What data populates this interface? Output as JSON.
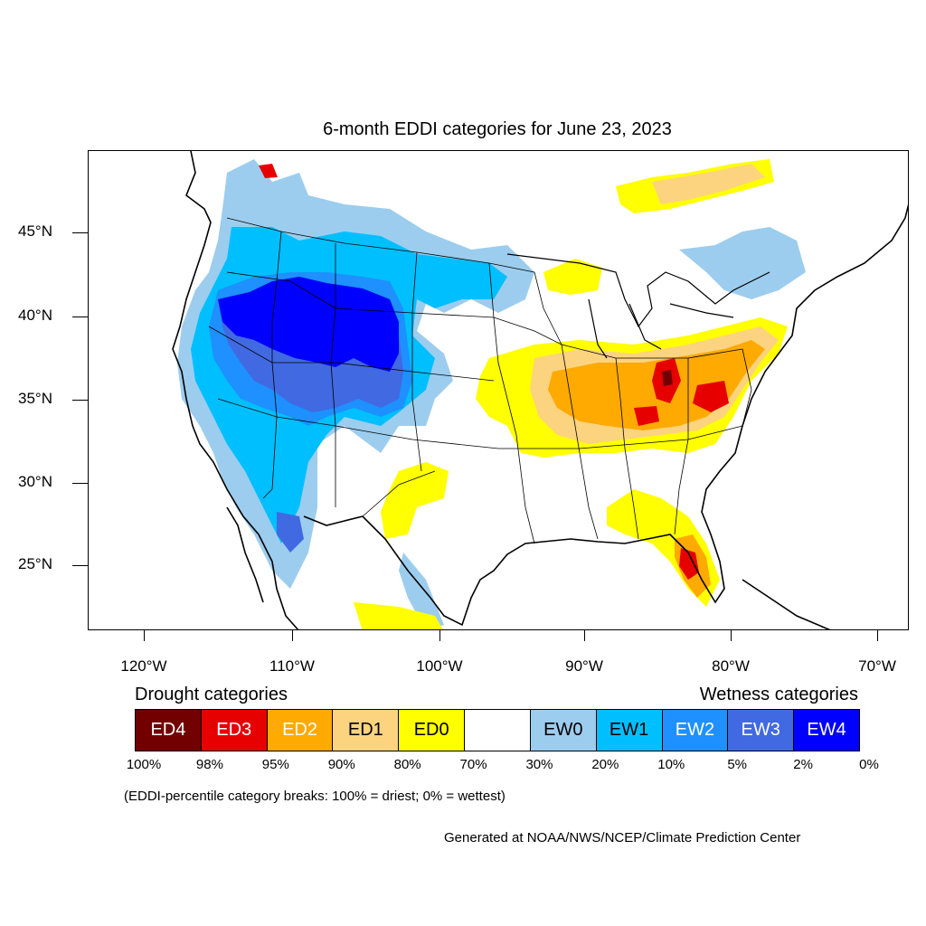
{
  "title": "6-month EDDI categories for June 23, 2023",
  "lat_labels": [
    "45°N",
    "40°N",
    "35°N",
    "30°N",
    "25°N"
  ],
  "lon_labels": [
    "120°W",
    "110°W",
    "100°W",
    "90°W",
    "80°W",
    "70°W"
  ],
  "legend": {
    "drought_heading": "Drought categories",
    "wetness_heading": "Wetness categories",
    "categories": [
      {
        "label": "ED4",
        "color": "#730000",
        "text_color": "#ffffff"
      },
      {
        "label": "ED3",
        "color": "#e60000",
        "text_color": "#ffffff"
      },
      {
        "label": "ED2",
        "color": "#ffaa00",
        "text_color": "#ffffff"
      },
      {
        "label": "ED1",
        "color": "#fcd37f",
        "text_color": "#000000"
      },
      {
        "label": "ED0",
        "color": "#ffff00",
        "text_color": "#000000"
      },
      {
        "label": "",
        "color": "#ffffff",
        "text_color": "#000000"
      },
      {
        "label": "EW0",
        "color": "#9ccdee",
        "text_color": "#000000"
      },
      {
        "label": "EW1",
        "color": "#00bfff",
        "text_color": "#000000"
      },
      {
        "label": "EW2",
        "color": "#1e90ff",
        "text_color": "#ffffff"
      },
      {
        "label": "EW3",
        "color": "#4169e1",
        "text_color": "#ffffff"
      },
      {
        "label": "EW4",
        "color": "#0000ff",
        "text_color": "#ffffff"
      }
    ],
    "percentiles": [
      "100%",
      "98%",
      "95%",
      "90%",
      "80%",
      "70%",
      "30%",
      "20%",
      "10%",
      "5%",
      "2%",
      "0%"
    ]
  },
  "note": "(EDDI-percentile category breaks: 100% = driest; 0% = wettest)",
  "credit": "Generated at NOAA/NWS/NCEP/Climate Prediction Center"
}
